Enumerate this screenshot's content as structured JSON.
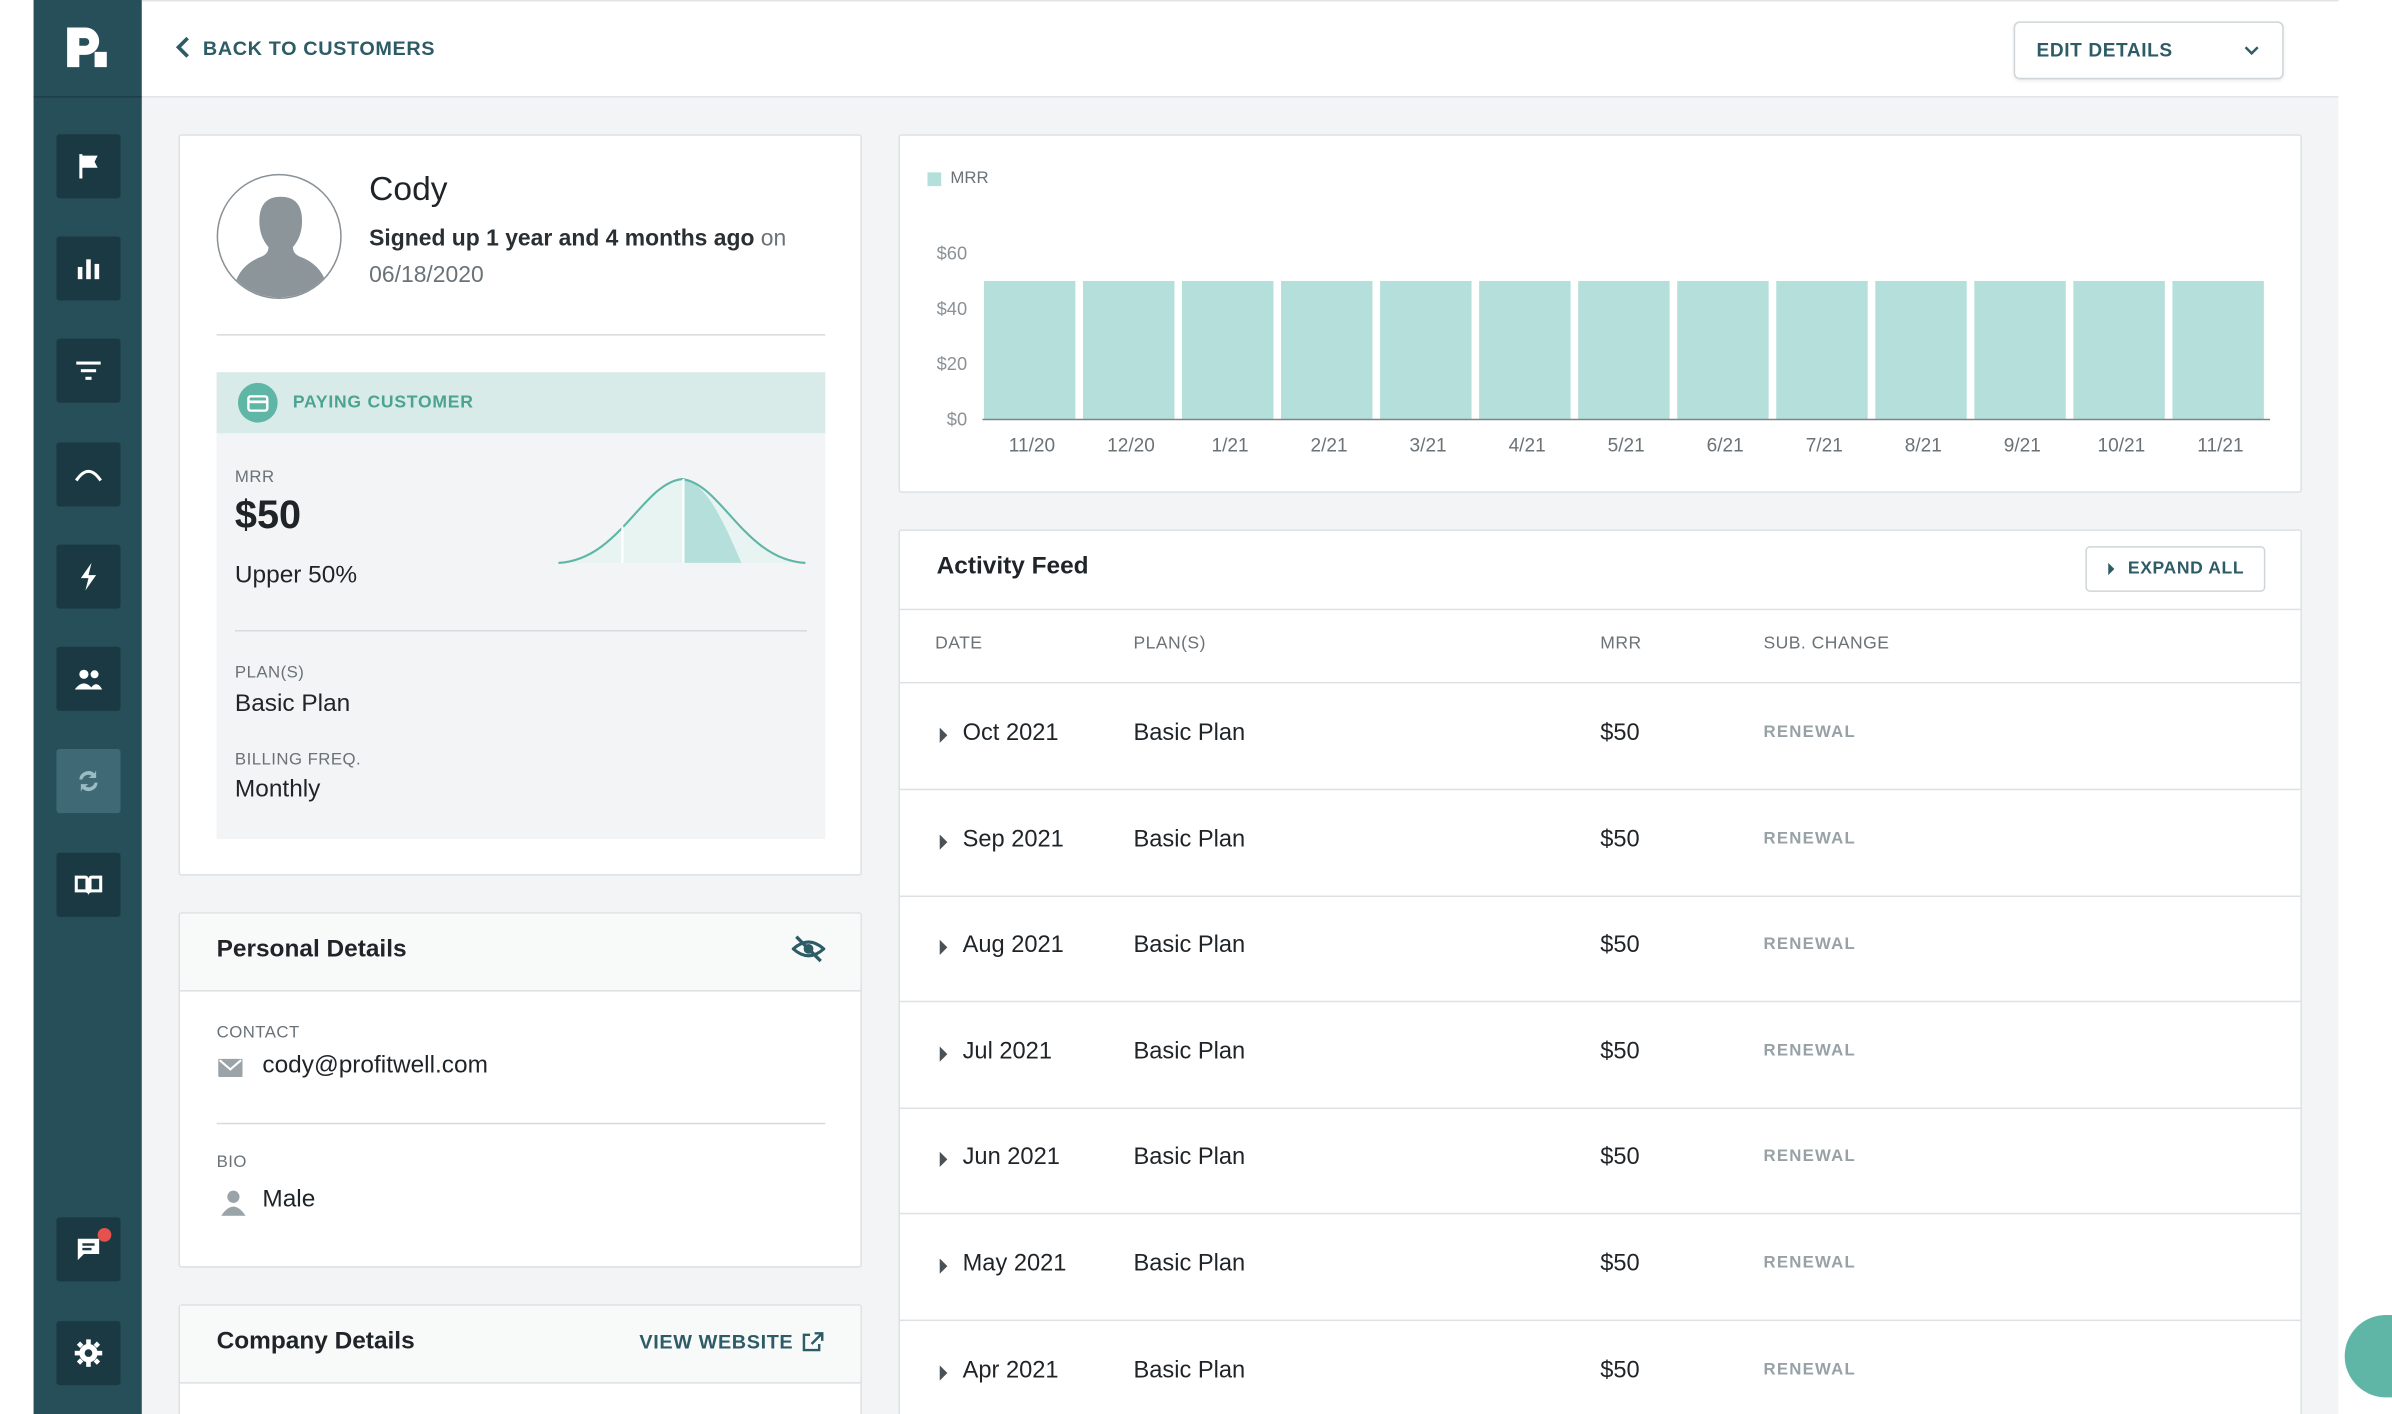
{
  "topbar": {
    "back_label": "BACK TO CUSTOMERS",
    "edit_label": "EDIT DETAILS"
  },
  "profile": {
    "name": "Cody",
    "signup_bold": "Signed up 1 year and 4 months ago",
    "signup_on": "on",
    "signup_date": "06/18/2020",
    "status": "PAYING CUSTOMER",
    "mrr_label": "MRR",
    "mrr_value": "$50",
    "percentile": "Upper 50%",
    "plans_label": "PLAN(S)",
    "plans_value": "Basic Plan",
    "billing_label": "BILLING FREQ.",
    "billing_value": "Monthly"
  },
  "personal": {
    "title": "Personal Details",
    "contact_label": "CONTACT",
    "contact_value": "cody@profitwell.com",
    "bio_label": "BIO",
    "bio_value": "Male"
  },
  "company": {
    "title": "Company Details",
    "view_website": "VIEW WEBSITE"
  },
  "chart_data": {
    "type": "bar",
    "legend": "MRR",
    "categories": [
      "11/20",
      "12/20",
      "1/21",
      "2/21",
      "3/21",
      "4/21",
      "5/21",
      "6/21",
      "7/21",
      "8/21",
      "9/21",
      "10/21",
      "11/21"
    ],
    "series": [
      {
        "name": "MRR",
        "values": [
          50,
          50,
          50,
          50,
          50,
          50,
          50,
          50,
          50,
          50,
          50,
          50,
          50
        ]
      }
    ],
    "yticks": [
      "$0",
      "$20",
      "$40",
      "$60"
    ],
    "ylim": [
      0,
      60
    ],
    "color": "#b4dfda"
  },
  "feed": {
    "title": "Activity Feed",
    "expand_label": "EXPAND ALL",
    "columns": {
      "date": "DATE",
      "plans": "PLAN(S)",
      "mrr": "MRR",
      "sub_change": "SUB. CHANGE"
    },
    "rows": [
      {
        "date": "Oct 2021",
        "plan": "Basic Plan",
        "mrr": "$50",
        "change": "RENEWAL"
      },
      {
        "date": "Sep 2021",
        "plan": "Basic Plan",
        "mrr": "$50",
        "change": "RENEWAL"
      },
      {
        "date": "Aug 2021",
        "plan": "Basic Plan",
        "mrr": "$50",
        "change": "RENEWAL"
      },
      {
        "date": "Jul 2021",
        "plan": "Basic Plan",
        "mrr": "$50",
        "change": "RENEWAL"
      },
      {
        "date": "Jun 2021",
        "plan": "Basic Plan",
        "mrr": "$50",
        "change": "RENEWAL"
      },
      {
        "date": "May 2021",
        "plan": "Basic Plan",
        "mrr": "$50",
        "change": "RENEWAL"
      },
      {
        "date": "Apr 2021",
        "plan": "Basic Plan",
        "mrr": "$50",
        "change": "RENEWAL"
      }
    ]
  },
  "sidebar": {
    "items": [
      {
        "icon": "flag-icon"
      },
      {
        "icon": "bar-chart-icon"
      },
      {
        "icon": "filter-icon"
      },
      {
        "icon": "trend-icon"
      },
      {
        "icon": "lightning-icon"
      },
      {
        "icon": "customers-icon"
      },
      {
        "icon": "retain-icon"
      },
      {
        "icon": "book-icon"
      }
    ],
    "bottom": [
      {
        "icon": "chat-icon"
      },
      {
        "icon": "gear-icon"
      }
    ]
  },
  "colors": {
    "sidebar": "#274f5a",
    "accent": "#2d5c67",
    "teal": "#5fb6a6",
    "bar": "#b4dfda",
    "badge": "#e5514d"
  }
}
